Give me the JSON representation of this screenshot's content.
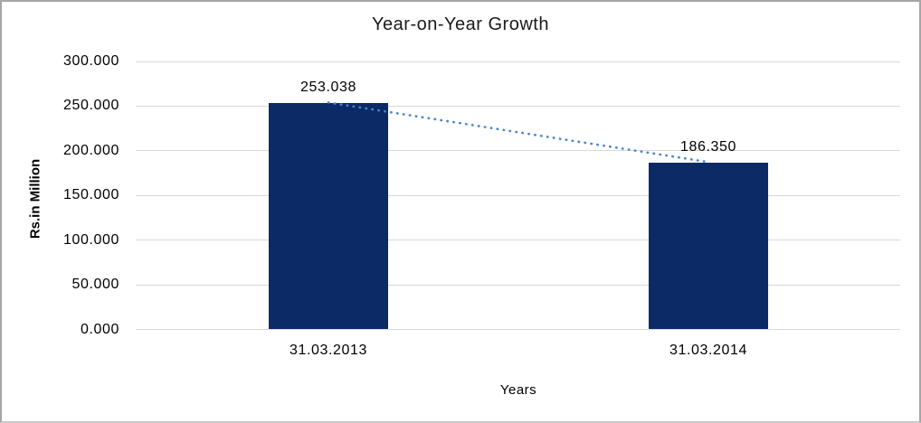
{
  "chart": {
    "title": "Year-on-Year Growth",
    "y_axis_title": "Rs.in Million",
    "x_axis_title": "Years"
  },
  "chart_data": {
    "type": "bar",
    "title": "Year-on-Year Growth",
    "xlabel": "Years",
    "ylabel": "Rs.in Million",
    "categories": [
      "31.03.2013",
      "31.03.2014"
    ],
    "values": [
      253.038,
      186.35
    ],
    "value_labels": [
      "253.038",
      "186.350"
    ],
    "ylim": [
      0,
      300
    ],
    "ytick_step": 50,
    "ytick_labels": [
      "0.000",
      "50.000",
      "100.000",
      "150.000",
      "200.000",
      "250.000",
      "300.000"
    ],
    "grid": true,
    "legend": "none",
    "trendline": {
      "type": "linear",
      "style": "dotted",
      "connects": [
        "253.038",
        "186.350"
      ]
    },
    "colors": {
      "bar": "#0c2a66",
      "trendline": "#4a86c6",
      "gridline": "#d9d9d9",
      "text": "#000000",
      "border": "#a6a6a6"
    }
  }
}
